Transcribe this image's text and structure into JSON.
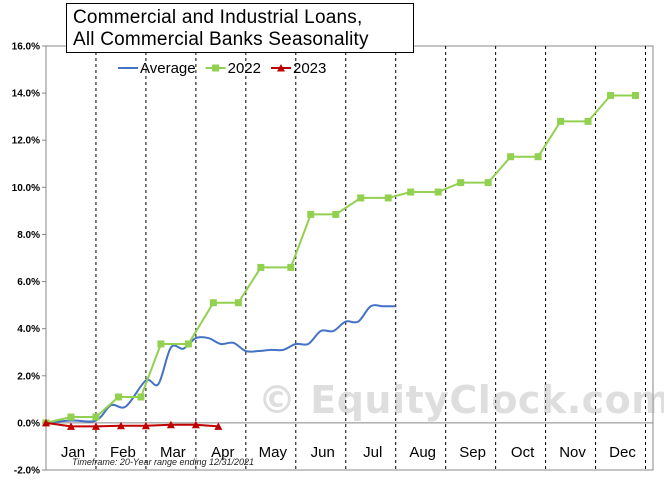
{
  "title": {
    "line1": "Commercial and Industrial Loans,",
    "line2": "All Commercial Banks Seasonality"
  },
  "timeframe_note": "Timeframe: 20-Year range ending 12/31/2021",
  "watermark": {
    "icon": "©",
    "text": "EquityClock.com"
  },
  "colors": {
    "average": "#4472C4",
    "y2022": "#92D050",
    "y2023": "#C00000",
    "grid": "#000000",
    "axis": "#888888"
  },
  "chart_data": {
    "type": "line",
    "x_labels": [
      "Jan",
      "Feb",
      "Mar",
      "Apr",
      "May",
      "Jun",
      "Jul",
      "Aug",
      "Sep",
      "Oct",
      "Nov",
      "Dec"
    ],
    "y_ticks": [
      "-2.0%",
      "0.0%",
      "2.0%",
      "4.0%",
      "6.0%",
      "8.0%",
      "10.0%",
      "12.0%",
      "14.0%",
      "16.0%"
    ],
    "ylim": [
      -2,
      16
    ],
    "xlim": [
      0,
      12
    ],
    "series": [
      {
        "name": "Average",
        "marker": "none",
        "points": [
          [
            0,
            0
          ],
          [
            0.5,
            0.1
          ],
          [
            1,
            0.1
          ],
          [
            1.3,
            0.75
          ],
          [
            1.6,
            0.7
          ],
          [
            2,
            1.8
          ],
          [
            2.25,
            1.65
          ],
          [
            2.5,
            3.2
          ],
          [
            2.75,
            3.15
          ],
          [
            3,
            3.6
          ],
          [
            3.25,
            3.6
          ],
          [
            3.5,
            3.35
          ],
          [
            3.75,
            3.4
          ],
          [
            4,
            3.05
          ],
          [
            4.25,
            3.05
          ],
          [
            4.5,
            3.1
          ],
          [
            4.75,
            3.1
          ],
          [
            5,
            3.35
          ],
          [
            5.25,
            3.35
          ],
          [
            5.5,
            3.9
          ],
          [
            5.75,
            3.9
          ],
          [
            6,
            4.3
          ],
          [
            6.25,
            4.3
          ],
          [
            6.5,
            4.95
          ],
          [
            6.75,
            4.95
          ],
          [
            7,
            4.95
          ]
        ]
      },
      {
        "name": "2022",
        "marker": "square",
        "points": [
          [
            0,
            0
          ],
          [
            0.5,
            0.25
          ],
          [
            1,
            0.25
          ],
          [
            1.45,
            1.1
          ],
          [
            1.9,
            1.1
          ],
          [
            2.3,
            3.35
          ],
          [
            2.85,
            3.35
          ],
          [
            3.35,
            5.1
          ],
          [
            3.85,
            5.1
          ],
          [
            4.3,
            6.6
          ],
          [
            4.9,
            6.6
          ],
          [
            5.3,
            8.85
          ],
          [
            5.8,
            8.85
          ],
          [
            6.3,
            9.55
          ],
          [
            6.85,
            9.55
          ],
          [
            7.3,
            9.8
          ],
          [
            7.85,
            9.8
          ],
          [
            8.3,
            10.2
          ],
          [
            8.85,
            10.2
          ],
          [
            9.3,
            11.3
          ],
          [
            9.85,
            11.3
          ],
          [
            10.3,
            12.8
          ],
          [
            10.85,
            12.8
          ],
          [
            11.3,
            13.9
          ],
          [
            11.8,
            13.9
          ]
        ]
      },
      {
        "name": "2023",
        "marker": "triangle",
        "points": [
          [
            0,
            0
          ],
          [
            0.5,
            -0.15
          ],
          [
            1,
            -0.15
          ],
          [
            1.5,
            -0.12
          ],
          [
            2,
            -0.12
          ],
          [
            2.5,
            -0.08
          ],
          [
            3,
            -0.08
          ],
          [
            3.45,
            -0.15
          ]
        ]
      }
    ],
    "legend": [
      "Average",
      "2022",
      "2023"
    ],
    "legend_position": "top",
    "grid": "vertical dashed month separators"
  }
}
